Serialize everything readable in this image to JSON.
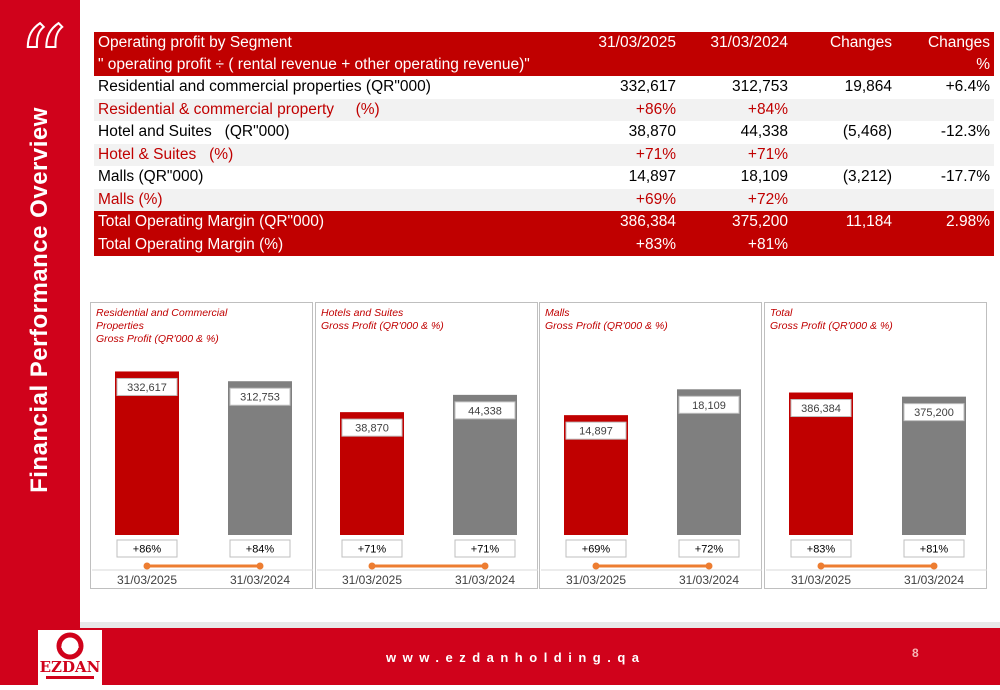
{
  "sidebar": {
    "title": "Financial Performance Overview"
  },
  "table": {
    "header": {
      "segment": "Operating profit by Segment",
      "col1": "31/03/2025",
      "col2": "31/03/2024",
      "col3": "Changes",
      "col4": "Changes",
      "subnote": "\" operating profit ÷ ( rental revenue + other operating revenue)\"",
      "col4_unit": "%"
    },
    "rows": [
      {
        "label": "Residential and commercial properties (QR\"000)",
        "v1": "332,617",
        "v2": "312,753",
        "v3": "19,864",
        "v4": "+6.4%"
      },
      {
        "label": "Residential & commercial property     (%)",
        "v1": "+86%",
        "v2": "+84%",
        "v3": "",
        "v4": ""
      },
      {
        "label": "Hotel and Suites   (QR\"000)",
        "v1": "38,870",
        "v2": "44,338",
        "v3": "(5,468)",
        "v4": "-12.3%"
      },
      {
        "label": "Hotel & Suites   (%)",
        "v1": "+71%",
        "v2": "+71%",
        "v3": "",
        "v4": ""
      },
      {
        "label": "Malls (QR\"000)",
        "v1": "14,897",
        "v2": "18,109",
        "v3": "(3,212)",
        "v4": "-17.7%"
      },
      {
        "label": "Malls (%)",
        "v1": "+69%",
        "v2": "+72%",
        "v3": "",
        "v4": ""
      },
      {
        "label": "Total Operating Margin (QR\"000)",
        "v1": "386,384",
        "v2": "375,200",
        "v3": "11,184",
        "v4": "2.98%"
      },
      {
        "label": "Total Operating Margin (%)",
        "v1": "+83%",
        "v2": "+81%",
        "v3": "",
        "v4": ""
      }
    ]
  },
  "colors": {
    "red": "#c00000",
    "gray": "#7f7f7f",
    "orange": "#ed7d31",
    "brand_red": "#d0021b"
  },
  "chart_data": [
    {
      "type": "bar",
      "title": "Residential and Commercial Properties Gross Profit (QR'000 & %)",
      "title_lines": [
        "Residential and Commercial",
        "Properties",
        "Gross Profit (QR'000 & %)"
      ],
      "categories": [
        "31/03/2025",
        "31/03/2024"
      ],
      "values": [
        332617,
        312753
      ],
      "value_labels": [
        "332,617",
        "312,753"
      ],
      "percent_labels": [
        "+86%",
        "+84%"
      ],
      "percents": [
        86,
        84
      ],
      "ylim": [
        0,
        360000
      ]
    },
    {
      "type": "bar",
      "title": "Hotels and Suites Gross Profit (QR'000 & %)",
      "title_lines": [
        "Hotels and Suites",
        "Gross Profit (QR'000 & %)"
      ],
      "categories": [
        "31/03/2025",
        "31/03/2024"
      ],
      "values": [
        38870,
        44338
      ],
      "value_labels": [
        "38,870",
        "44,338"
      ],
      "percent_labels": [
        "+71%",
        "+71%"
      ],
      "percents": [
        71,
        71
      ],
      "ylim": [
        0,
        56000
      ]
    },
    {
      "type": "bar",
      "title": "Malls Gross Profit (QR'000 & %)",
      "title_lines": [
        "Malls",
        "Gross Profit (QR'000 & %)"
      ],
      "categories": [
        "31/03/2025",
        "31/03/2024"
      ],
      "values": [
        14897,
        18109
      ],
      "value_labels": [
        "14,897",
        "18,109"
      ],
      "percent_labels": [
        "+69%",
        "+72%"
      ],
      "percents": [
        69,
        72
      ],
      "ylim": [
        0,
        22000
      ]
    },
    {
      "type": "bar",
      "title": "Total Gross Profit (QR'000 & %)",
      "title_lines": [
        "Total",
        "Gross Profit (QR'000 & %)"
      ],
      "categories": [
        "31/03/2025",
        "31/03/2024"
      ],
      "values": [
        386384,
        375200
      ],
      "value_labels": [
        "386,384",
        "375,200"
      ],
      "percent_labels": [
        "+83%",
        "+81%"
      ],
      "percents": [
        83,
        81
      ],
      "ylim": [
        0,
        480000
      ]
    }
  ],
  "footer": {
    "website": "www.ezdanholding.qa",
    "page": "8",
    "logo_text": "EZDAN"
  }
}
